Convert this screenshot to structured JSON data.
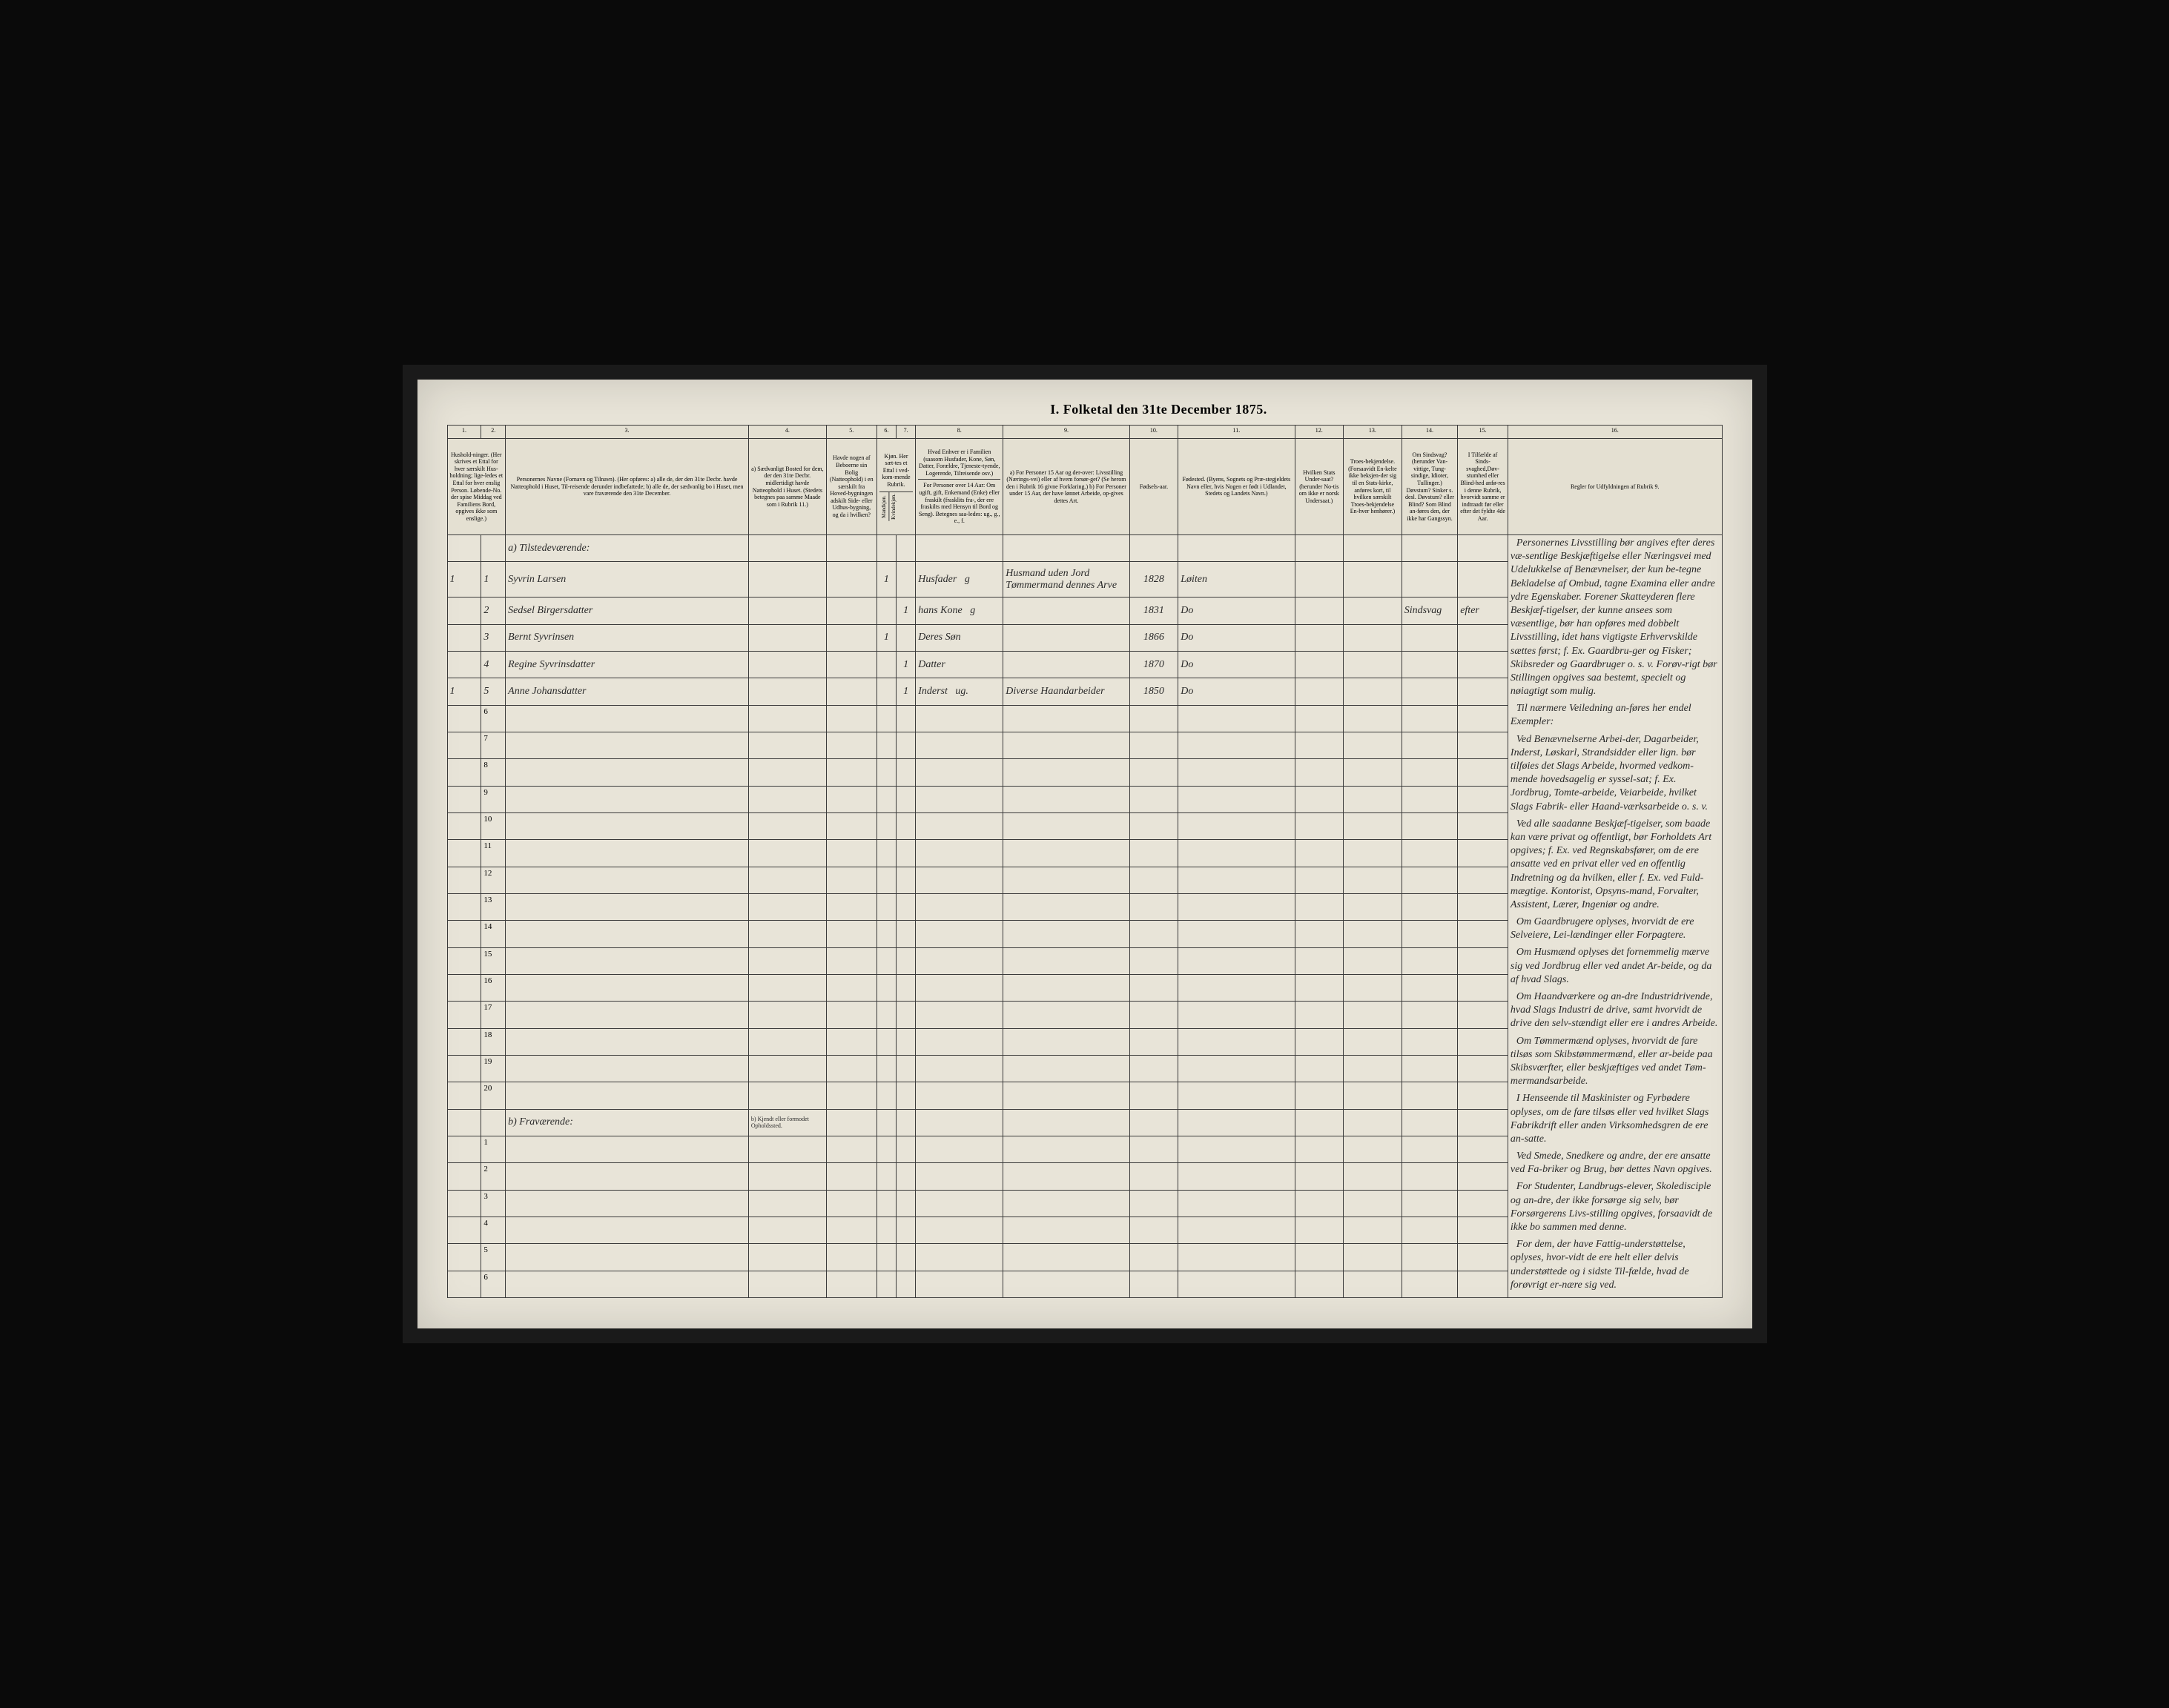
{
  "title": "I. Folketal den 31te December 1875.",
  "columns": {
    "c1": "1.",
    "c2": "2.",
    "c3": "3.",
    "c4": "4.",
    "c5": "5.",
    "c6": "6.",
    "c7": "7.",
    "c8": "8.",
    "c9": "9.",
    "c10": "10.",
    "c11": "11.",
    "c12": "12.",
    "c13": "13.",
    "c14": "14.",
    "c15": "15.",
    "c16": "16."
  },
  "headers": {
    "h1": "Hushold-ninger. (Her skrives et Ettal for hver særskilt Hus-holdning; lige-ledes et Ettal for hver enslig Person. Løbende-No. der spise Middag ved Familiens Bord, opgives ikke som enslige.)",
    "h3": "Personernes Navne (Fornavn og Tilnavn). (Her opføres: a) alle de, der den 31te Decbr. havde Natteophold i Huset, Til-reisende derunder indbefattede; b) alle de, der sædvanlig bo i Huset, men vare fraværende den 31te December.",
    "h4": "a) Sædvanligt Bosted for dem, der den 31te Decbr. midlertidigt havde Natteophold i Huset. (Stedets betegnes paa samme Maade som i Rubrik 11.)",
    "h5": "Havde nogen af Beboerne sin Bolig (Natteophold) i en særskilt fra Hoved-bygningen adskilt Side- eller Udhus-bygning, og da i hvilken?",
    "h6_7": "Kjøn. Her sæt-tes et Ettal i ved-kom-mende Rubrik.",
    "h6": "Mandkjøn.",
    "h7": "Kvindekjøn.",
    "h8": "Hvad Enhver er i Familien (saasom Husfader, Kone, Søn, Datter, Forældre, Tjeneste-tyende, Logerende, Tilreisende osv.)",
    "h9_top": "For Personer over 14 Aar: Om ugift, gift, Enkemand (Enke) eller fraskilt (frasklits fra-, der ere fraskilts med Hensyn til Bord og Seng). Betegnes saa-ledes: ug., g., e., f.",
    "h9": "a) For Personer 15 Aar og der-over: Livsstilling (Nærings-vei) eller af hvem forsør-get? (Se herom den i Rubrik 16 givne Forklaring.) b) For Personer under 15 Aar, der have lønnet Arbeide, op-gives dettes Art.",
    "h10": "Fødsels-aar.",
    "h11": "Fødested. (Byens, Sognets og Præ-stegjeldets Navn eller, hvis Nogen er født i Udlandet, Stedets og Landets Navn.)",
    "h12": "Hvilken Stats Under-saat? (herunder No-tis om ikke er norsk Undersaat.)",
    "h13": "Troes-bekjendelse. (Forsaavidt En-kelte ikke beksjen-der sig til en Stats-kirke, anføres kort, til hvilken særskilt Troes-bekjendelse En-hver henhører.)",
    "h14": "Om Sindsvag? (herunder Van-vittige, Tung-sindige, Idioter, Tullinger.) Døvstum? Sinker s. desl. Døvstum? eller Blind? Som Blind an-føres den, der ikke har Gangssyn.",
    "h15": "I Tilfælde af Sinds-svaghed,Døv-stumhed eller Blind-hed anfø-res i denne Rubrik, hvorvidt samme er indtraadt før eller efter det fyldte 4de Aar.",
    "h16": "Regler for Udfyldningen af Rubrik 9."
  },
  "sections": {
    "tilstedevaerende": "Tilstedeværende:",
    "fravaerende": "Fraværende:",
    "fravaerende_note": "b) Kjendt eller formodet Opholdssted."
  },
  "rows": [
    {
      "num": "1",
      "hh": "1",
      "idx": "1",
      "name": "Syvrin Larsen",
      "sex_m": "1",
      "sex_f": "",
      "relation": "Husfader",
      "status": "g",
      "occupation": "Husmand uden Jord Tømmermand dennes Arve",
      "birth": "1828",
      "place": "Løiten"
    },
    {
      "num": "",
      "hh": "",
      "idx": "2",
      "name": "Sedsel Birgersdatter",
      "sex_m": "",
      "sex_f": "1",
      "relation": "hans Kone",
      "status": "g",
      "occupation": "",
      "birth": "1831",
      "place": "Do",
      "c14": "Sindsvag",
      "c15": "efter"
    },
    {
      "num": "",
      "hh": "",
      "idx": "3",
      "name": "Bernt Syvrinsen",
      "sex_m": "1",
      "sex_f": "",
      "relation": "Deres Søn",
      "status": "",
      "occupation": "",
      "birth": "1866",
      "place": "Do"
    },
    {
      "num": "",
      "hh": "",
      "idx": "4",
      "name": "Regine Syvrinsdatter",
      "sex_m": "",
      "sex_f": "1",
      "relation": "Datter",
      "status": "",
      "occupation": "",
      "birth": "1870",
      "place": "Do"
    },
    {
      "num": "",
      "hh": "1",
      "idx": "5",
      "name": "Anne Johansdatter",
      "sex_m": "",
      "sex_f": "1",
      "relation": "Inderst",
      "status": "ug.",
      "occupation": "Diverse Haandarbeider",
      "birth": "1850",
      "place": "Do"
    }
  ],
  "empty_present_rows": [
    "6",
    "7",
    "8",
    "9",
    "10",
    "11",
    "12",
    "13",
    "14",
    "15",
    "16",
    "17",
    "18",
    "19",
    "20"
  ],
  "empty_absent_rows": [
    "1",
    "2",
    "3",
    "4",
    "5",
    "6"
  ],
  "sidebar": {
    "p1": "Personernes Livsstilling bør angives efter deres væ-sentlige Beskjæftigelse eller Næringsvei med Udelukkelse af Benævnelser, der kun be-tegne Bekladelse af Ombud, tagne Examina eller andre ydre Egenskaber. Forener Skatteyderen flere Beskjæf-tigelser, der kunne ansees som væsentlige, bør han opføres med dobbelt Livsstilling, idet hans vigtigste Erhvervskilde sættes først; f. Ex. Gaardbru-ger og Fisker; Skibsreder og Gaardbruger o. s. v. Forøv-rigt bør Stillingen opgives saa bestemt, specielt og nøiagtigt som mulig.",
    "p2": "Til nærmere Veiledning an-føres her endel Exempler:",
    "p3": "Ved Benævnelserne Arbei-der, Dagarbeider, Inderst, Løskarl, Strandsidder eller lign. bør tilføies det Slags Arbeide, hvormed vedkom-mende hovedsagelig er syssel-sat; f. Ex. Jordbrug, Tomte-arbeide, Veiarbeide, hvilket Slags Fabrik- eller Haand-værksarbeide o. s. v.",
    "p4": "Ved alle saadanne Beskjæf-tigelser, som baade kan være privat og offentligt, bør Forholdets Art opgives; f. Ex. ved Regnskabsfører, om de ere ansatte ved en privat eller ved en offentlig Indretning og da hvilken, eller f. Ex. ved Fuld-mægtige. Kontorist, Opsyns-mand, Forvalter, Assistent, Lærer, Ingeniør og andre.",
    "p5": "Om Gaardbrugere oplyses, hvorvidt de ere Selveiere, Lei-lændinger eller Forpagtere.",
    "p6": "Om Husmænd oplyses det fornemmelig mærve sig ved Jordbrug eller ved andet Ar-beide, og da af hvad Slags.",
    "p7": "Om Haandværkere og an-dre Industridrivende, hvad Slags Industri de drive, samt hvorvidt de drive den selv-stændigt eller ere i andres Arbeide.",
    "p8": "Om Tømmermænd oplyses, hvorvidt de fare tilsøs som Skibstømmermænd, eller ar-beide paa Skibsværfter, eller beskjæftiges ved andet Tøm-mermandsarbeide.",
    "p9": "I Henseende til Maskinister og Fyrbødere oplyses, om de fare tilsøs eller ved hvilket Slags Fabrikdrift eller anden Virksomhedsgren de ere an-satte.",
    "p10": "Ved Smede, Snedkere og andre, der ere ansatte ved Fa-briker og Brug, bør dettes Navn opgives.",
    "p11": "For Studenter, Landbrugs-elever, Skoledisciple og an-dre, der ikke forsørge sig selv, bør Forsørgerens Livs-stilling opgives, forsaavidt de ikke bo sammen med denne.",
    "p12": "For dem, der have Fattig-understøttelse, oplyses, hvor-vidt de ere helt eller delvis understøttede og i sidste Til-fælde, hvad de forøvrigt er-nære sig ved."
  },
  "styling": {
    "paper_bg": "#e8e4d8",
    "border_color": "#3a3a3a",
    "frame_bg": "#0a0a0a",
    "handwriting_color": "#2a2a2a",
    "title_fontsize": 18,
    "header_fontsize": 8,
    "data_fontsize": 14,
    "sidebar_fontsize": 8
  }
}
